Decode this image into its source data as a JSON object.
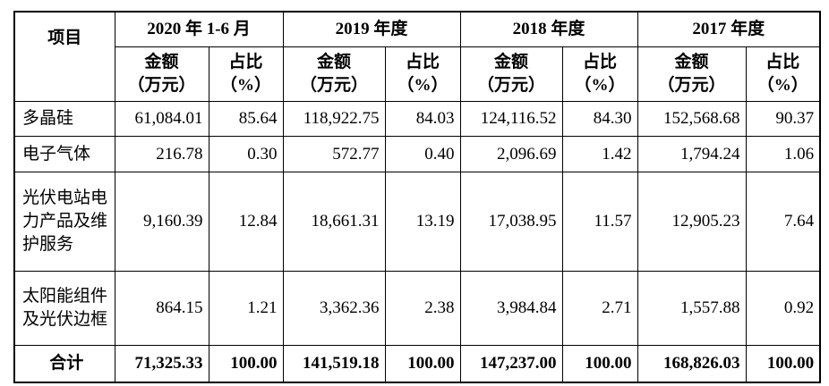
{
  "table": {
    "header": {
      "item": "项目",
      "periods": [
        "2020 年 1-6 月",
        "2019 年度",
        "2018 年度",
        "2017 年度"
      ],
      "amount_label": "金额",
      "amount_unit": "（万元）",
      "ratio_label": "占比",
      "ratio_unit": "（%）"
    },
    "rows": [
      {
        "label": "多晶硅",
        "values": [
          "61,084.01",
          "85.64",
          "118,922.75",
          "84.03",
          "124,116.52",
          "84.30",
          "152,568.68",
          "90.37"
        ]
      },
      {
        "label": "电子气体",
        "values": [
          "216.78",
          "0.30",
          "572.77",
          "0.40",
          "2,096.69",
          "1.42",
          "1,794.24",
          "1.06"
        ]
      },
      {
        "label": "光伏电站电力产品及维护服务",
        "values": [
          "9,160.39",
          "12.84",
          "18,661.31",
          "13.19",
          "17,038.95",
          "11.57",
          "12,905.23",
          "7.64"
        ]
      },
      {
        "label": "太阳能组件及光伏边框",
        "values": [
          "864.15",
          "1.21",
          "3,362.36",
          "2.38",
          "3,984.84",
          "2.71",
          "1,557.88",
          "0.92"
        ]
      }
    ],
    "total": {
      "label": "合计",
      "values": [
        "71,325.33",
        "100.00",
        "141,519.18",
        "100.00",
        "147,237.00",
        "100.00",
        "168,826.03",
        "100.00"
      ]
    }
  }
}
